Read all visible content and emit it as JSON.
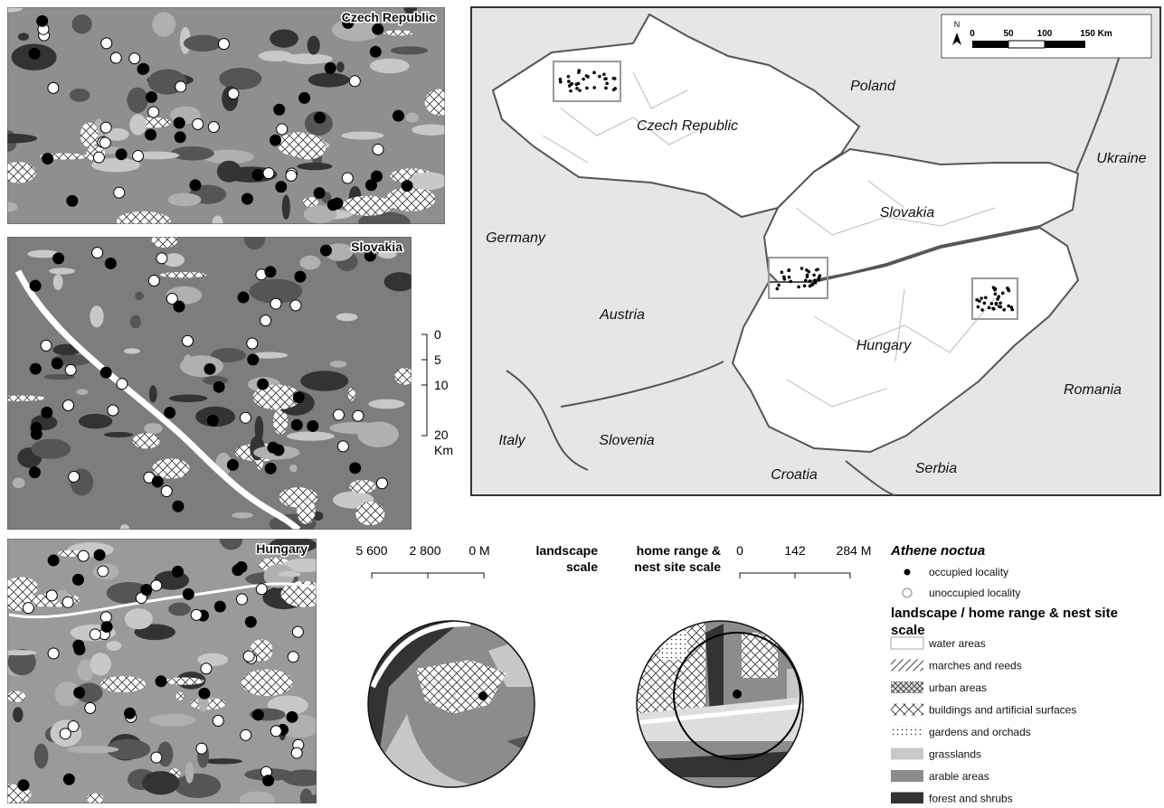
{
  "panels": [
    {
      "label": "Czech Republic"
    },
    {
      "label": "Slovakia"
    },
    {
      "label": "Hungary"
    }
  ],
  "panel_scale": {
    "ticks": [
      "0",
      "5",
      "10",
      "20"
    ],
    "unit": "Km"
  },
  "overview_map": {
    "north": "N",
    "scale_ticks": [
      "0",
      "50",
      "100",
      "150 Km"
    ],
    "labels": [
      "Poland",
      "Czech Republic",
      "Ukraine",
      "Germany",
      "Slovakia",
      "Austria",
      "Hungary",
      "Romania",
      "Italy",
      "Slovenia",
      "Croatia",
      "Serbia"
    ]
  },
  "scale_bars": [
    {
      "ticks": [
        "5 600",
        "2 800",
        "0 M"
      ],
      "label_lines": [
        "landscape",
        "scale"
      ]
    },
    {
      "ticks": [
        "0",
        "142",
        "284 M"
      ],
      "label_lines": [
        "home range &",
        "nest site scale"
      ]
    }
  ],
  "legend": {
    "species": "Athene noctua",
    "points": [
      "occupied locality",
      "unoccupied locality"
    ],
    "heading_lines": [
      "landscape / home range & nest site",
      "scale"
    ],
    "classes": [
      "water areas",
      "marches and reeds",
      "urban areas",
      "buildings and artificial surfaces",
      "gardens and orchads",
      "grasslands",
      "arable areas",
      "forest and shrubs"
    ]
  }
}
